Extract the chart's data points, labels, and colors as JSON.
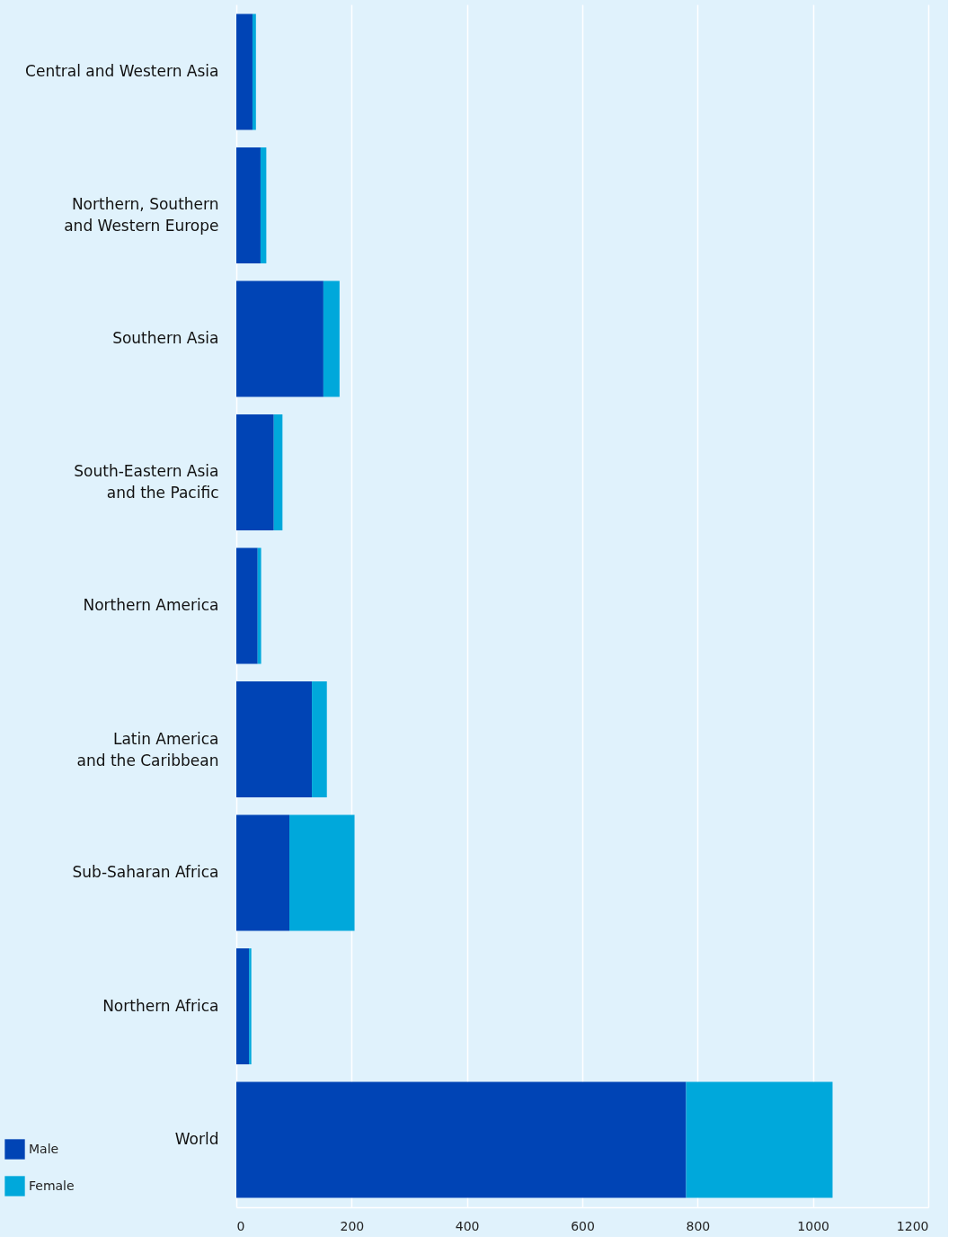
{
  "chart_data": {
    "type": "bar",
    "orientation": "horizontal",
    "stacked": true,
    "categories": [
      "Central and Western Asia",
      "Northern, Southern and Western Europe",
      "Southern Asia",
      "South-Eastern Asia and the Pacific",
      "Northern America",
      "Latin America and the Caribbean",
      "Sub-Saharan Africa",
      "Northern Africa",
      "World"
    ],
    "series": [
      {
        "name": "Male",
        "color": "#0044b5",
        "values": [
          28,
          42,
          151,
          65,
          37,
          131,
          92,
          22,
          780
        ]
      },
      {
        "name": "Female",
        "color": "#00a8db",
        "values": [
          6,
          10,
          28,
          15,
          6,
          26,
          113,
          4,
          254
        ]
      }
    ],
    "xlim": [
      0,
      1200
    ],
    "xticks": [
      0,
      200,
      400,
      600,
      800,
      1000,
      1200
    ],
    "grid": "x",
    "legend": "bottom left"
  }
}
